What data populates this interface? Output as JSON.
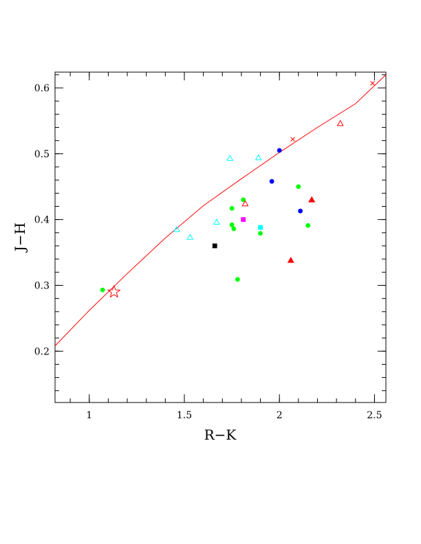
{
  "chart_data": {
    "type": "scatter",
    "title": "",
    "xlabel": "R−K",
    "ylabel": "J−H",
    "xlim": [
      0.82,
      2.56
    ],
    "ylim": [
      0.122,
      0.624
    ],
    "grid": false,
    "x_ticks": [
      1,
      1.5,
      2,
      2.5
    ],
    "x_tick_labels": [
      "1",
      "1.5",
      "2",
      "2.5"
    ],
    "y_ticks": [
      0.2,
      0.3,
      0.4,
      0.5,
      0.6
    ],
    "y_tick_labels": [
      "0.2",
      "0.3",
      "0.4",
      "0.5",
      "0.6"
    ],
    "curve": {
      "color": "#ff0000",
      "points": [
        {
          "x": 0.82,
          "y": 0.208
        },
        {
          "x": 1.0,
          "y": 0.262
        },
        {
          "x": 1.2,
          "y": 0.318
        },
        {
          "x": 1.4,
          "y": 0.372
        },
        {
          "x": 1.6,
          "y": 0.421
        },
        {
          "x": 1.8,
          "y": 0.462
        },
        {
          "x": 2.0,
          "y": 0.502
        },
        {
          "x": 2.2,
          "y": 0.54
        },
        {
          "x": 2.4,
          "y": 0.576
        },
        {
          "x": 2.56,
          "y": 0.62
        }
      ],
      "cross_marks": [
        {
          "x": 2.07,
          "y": 0.522
        },
        {
          "x": 2.49,
          "y": 0.607
        }
      ],
      "star_marker": {
        "x": 1.13,
        "y": 0.29
      }
    },
    "series": [
      {
        "marker": "circle",
        "color": "#00ff00",
        "points": [
          {
            "x": 1.07,
            "y": 0.293
          },
          {
            "x": 1.75,
            "y": 0.417
          },
          {
            "x": 1.81,
            "y": 0.43
          },
          {
            "x": 1.75,
            "y": 0.392
          },
          {
            "x": 1.76,
            "y": 0.386
          },
          {
            "x": 1.9,
            "y": 0.379
          },
          {
            "x": 1.78,
            "y": 0.309
          },
          {
            "x": 2.1,
            "y": 0.45
          },
          {
            "x": 2.15,
            "y": 0.391
          }
        ]
      },
      {
        "marker": "circle",
        "color": "#0000ff",
        "points": [
          {
            "x": 2.0,
            "y": 0.505
          },
          {
            "x": 1.96,
            "y": 0.458
          },
          {
            "x": 2.11,
            "y": 0.413
          }
        ]
      },
      {
        "marker": "triangle-open",
        "color": "#00ffff",
        "points": [
          {
            "x": 1.46,
            "y": 0.385
          },
          {
            "x": 1.53,
            "y": 0.373
          },
          {
            "x": 1.67,
            "y": 0.396
          },
          {
            "x": 1.74,
            "y": 0.493
          },
          {
            "x": 1.89,
            "y": 0.494
          }
        ]
      },
      {
        "marker": "triangle-open",
        "color": "#ff0000",
        "points": [
          {
            "x": 1.82,
            "y": 0.424
          },
          {
            "x": 2.32,
            "y": 0.546
          }
        ]
      },
      {
        "marker": "triangle-filled",
        "color": "#ff0000",
        "points": [
          {
            "x": 2.06,
            "y": 0.338
          },
          {
            "x": 2.17,
            "y": 0.43
          }
        ]
      },
      {
        "marker": "square",
        "color": "#000000",
        "points": [
          {
            "x": 1.66,
            "y": 0.36
          }
        ]
      },
      {
        "marker": "square",
        "color": "#ff00ff",
        "points": [
          {
            "x": 1.81,
            "y": 0.4
          }
        ]
      },
      {
        "marker": "square",
        "color": "#00ffff",
        "points": [
          {
            "x": 1.9,
            "y": 0.388
          }
        ]
      }
    ]
  }
}
